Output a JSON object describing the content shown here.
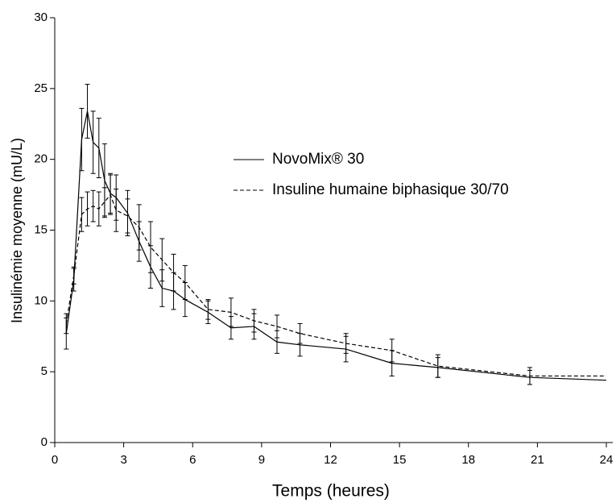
{
  "chart_data": {
    "type": "line",
    "xlabel": "Temps (heures)",
    "ylabel": "Insulinémie moyenne (mU/L)",
    "x": [
      0.5,
      0.83,
      1.17,
      1.42,
      1.67,
      1.92,
      2.17,
      2.42,
      2.67,
      3.17,
      3.67,
      4.17,
      4.67,
      5.17,
      5.67,
      6.67,
      7.67,
      8.67,
      9.67,
      10.67,
      12.67,
      14.67,
      16.67,
      20.67,
      24
    ],
    "series": [
      {
        "name": "NovoMix® 30",
        "color": "#000000",
        "dash": false,
        "values": [
          7.7,
          11.5,
          21.4,
          23.4,
          21.2,
          20.8,
          18.5,
          17.6,
          17.3,
          16.2,
          14.2,
          12.4,
          10.9,
          10.7,
          10.1,
          9.2,
          8.1,
          8.2,
          7.1,
          6.9,
          6.6,
          5.6,
          5.3,
          4.6,
          4.4
        ],
        "errors": [
          1.1,
          0.8,
          2.2,
          1.9,
          2.2,
          2.1,
          2.6,
          1.4,
          1.6,
          1.6,
          1.4,
          1.5,
          1.3,
          1.3,
          1.2,
          0.8,
          0.8,
          0.9,
          0.8,
          0.8,
          0.9,
          0.9,
          0.7,
          0.5,
          null
        ]
      },
      {
        "name": "Insuline humaine biphasique 30/70",
        "color": "#000000",
        "dash": true,
        "values": [
          8.4,
          11.8,
          16.1,
          16.5,
          16.7,
          16.5,
          17.0,
          17.5,
          16.4,
          16.0,
          15.2,
          13.8,
          12.9,
          12.0,
          11.3,
          9.4,
          9.2,
          8.6,
          8.2,
          7.7,
          7.0,
          6.5,
          5.4,
          4.7,
          4.7
        ],
        "errors": [
          0.7,
          0.6,
          1.2,
          1.2,
          1.1,
          1.2,
          1.0,
          1.4,
          1.5,
          1.2,
          1.6,
          1.8,
          1.5,
          1.3,
          1.2,
          0.7,
          1.0,
          0.8,
          0.8,
          0.7,
          0.7,
          0.8,
          0.8,
          0.6,
          null
        ]
      }
    ],
    "xlim": [
      0,
      24
    ],
    "xticks": [
      0,
      3,
      6,
      9,
      12,
      15,
      18,
      21,
      24
    ],
    "ylim": [
      0,
      30
    ],
    "yticks": [
      0,
      5,
      10,
      15,
      20,
      25,
      30
    ]
  }
}
